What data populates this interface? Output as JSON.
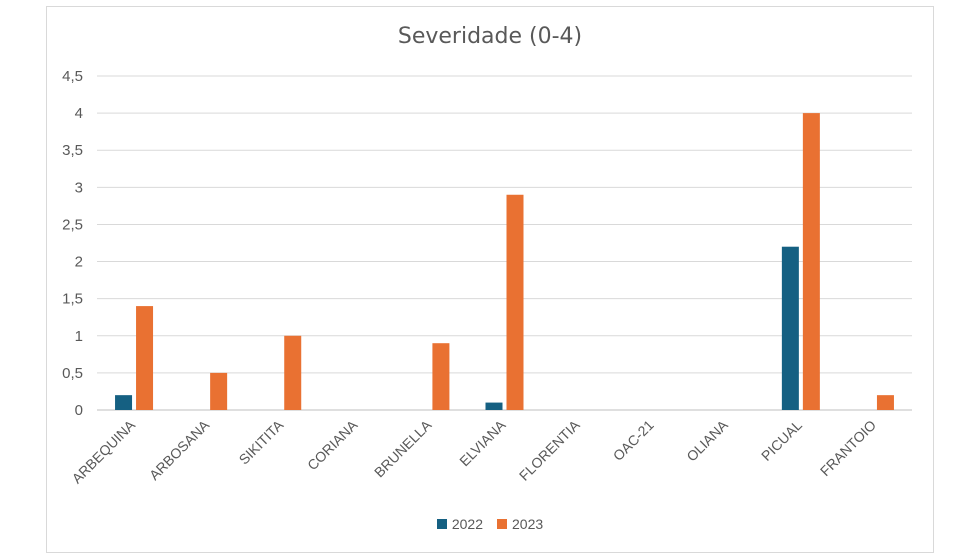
{
  "chart_data": {
    "type": "bar",
    "title": "Severidade (0-4)",
    "xlabel": "",
    "ylabel": "",
    "ylim": [
      0,
      4.5
    ],
    "yticks": [
      "0",
      "0,5",
      "1",
      "1,5",
      "2",
      "2,5",
      "3",
      "3,5",
      "4",
      "4,5"
    ],
    "ytick_values": [
      0,
      0.5,
      1,
      1.5,
      2,
      2.5,
      3,
      3.5,
      4,
      4.5
    ],
    "grid": true,
    "legend_position": "bottom",
    "categories": [
      "ARBEQUINA",
      "ARBOSANA",
      "SIKITITA",
      "CORIANA",
      "BRUNELLA",
      "ELVIANA",
      "FLORENTIA",
      "OAC-21",
      "OLIANA",
      "PICUAL",
      "FRANTOIO"
    ],
    "series": [
      {
        "name": "2022",
        "color": "#156082",
        "values": [
          0.2,
          0,
          0,
          0,
          0,
          0.1,
          0,
          0,
          0,
          2.2,
          0
        ]
      },
      {
        "name": "2023",
        "color": "#E97132",
        "values": [
          1.4,
          0.5,
          1.0,
          0,
          0.9,
          2.9,
          0,
          0,
          0,
          4.0,
          0.2
        ]
      }
    ]
  }
}
